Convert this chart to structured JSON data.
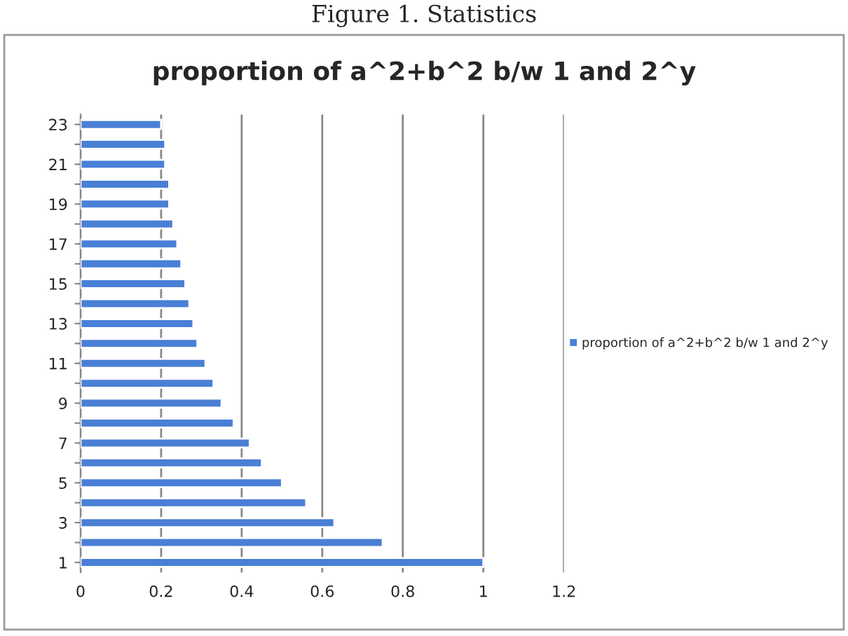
{
  "chart_data": {
    "type": "bar",
    "orientation": "horizontal",
    "title": "proportion of a^2+b^2 b/w 1 and 2^y",
    "annotations": [
      "Figure 1. Statistics"
    ],
    "categories": [
      "23",
      null,
      "21",
      null,
      "19",
      null,
      "17",
      null,
      "15",
      null,
      "13",
      null,
      "11",
      null,
      "9",
      null,
      "7",
      null,
      "5",
      null,
      "3",
      null,
      "1"
    ],
    "series": [
      {
        "name": "proportion of a^2+b^2 b/w 1 and 2^y",
        "color": "#4a7fd6",
        "values": [
          0.2,
          0.21,
          0.21,
          0.22,
          0.22,
          0.23,
          0.24,
          0.25,
          0.26,
          0.27,
          0.28,
          0.29,
          0.31,
          0.33,
          0.35,
          0.38,
          0.42,
          0.45,
          0.5,
          0.56,
          0.63,
          0.75,
          1.0
        ]
      }
    ],
    "xlim": [
      0,
      1.2
    ],
    "xticks": [
      0,
      0.2,
      0.4,
      0.6,
      0.8,
      1,
      1.2
    ],
    "grid": "x",
    "legend": "right"
  }
}
